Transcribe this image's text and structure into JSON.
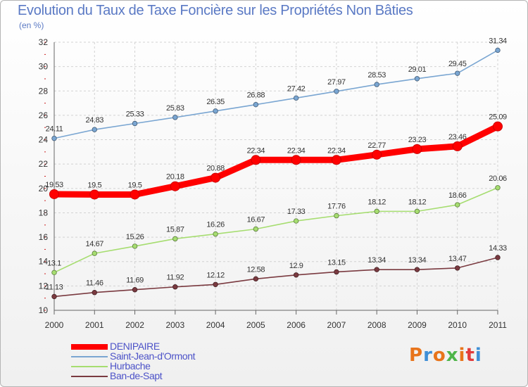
{
  "header": {
    "title": "Evolution du Taux de Taxe Foncière sur les Propriétés Non Bâties",
    "unit": "(en %)"
  },
  "brand": {
    "text": "Proxiti",
    "colors": [
      "#e8741b",
      "#3f8fd6",
      "#e8741b",
      "#4fb54a",
      "#e8741b",
      "#e23b3b",
      "#3f8fd6"
    ]
  },
  "chart_data": {
    "type": "line",
    "title": "Evolution du Taux de Taxe Foncière sur les Propriétés Non Bâties",
    "ylabel": "(en %)",
    "xlabel": "",
    "x": [
      "2000",
      "2001",
      "2002",
      "2003",
      "2004",
      "2005",
      "2006",
      "2007",
      "2008",
      "2009",
      "2010",
      "2011"
    ],
    "ylim": [
      10,
      32
    ],
    "yticks": [
      "10",
      "12",
      "14",
      "16",
      "18",
      "20",
      "22",
      "24",
      "26",
      "28",
      "30",
      "32"
    ],
    "grid": true,
    "legend_position": "bottom-left",
    "series": [
      {
        "name": "DENIPAIRE",
        "color": "#ff0000",
        "values": [
          19.53,
          19.5,
          19.5,
          20.18,
          20.88,
          22.34,
          22.34,
          22.34,
          22.77,
          23.23,
          23.46,
          25.09
        ],
        "labels": [
          "19.53",
          "19.5",
          "19.5",
          "20.18",
          "20.88",
          "22.34",
          "22.34",
          "22.34",
          "22.77",
          "23.23",
          "23.46",
          "25.09"
        ]
      },
      {
        "name": "Saint-Jean-d'Ormont",
        "color": "#7aa6d2",
        "values": [
          24.11,
          24.83,
          25.33,
          25.83,
          26.35,
          26.88,
          27.42,
          27.97,
          28.53,
          29.01,
          29.45,
          31.34
        ],
        "labels": [
          "24.11",
          "24.83",
          "25.33",
          "25.83",
          "26.35",
          "26.88",
          "27.42",
          "27.97",
          "28.53",
          "29.01",
          "29.45",
          "31.34"
        ]
      },
      {
        "name": "Hurbache",
        "color": "#a6dd70",
        "values": [
          13.1,
          14.67,
          15.26,
          15.87,
          16.26,
          16.67,
          17.33,
          17.76,
          18.12,
          18.12,
          18.66,
          20.06
        ],
        "labels": [
          "13.1",
          "14.67",
          "15.26",
          "15.87",
          "16.26",
          "16.67",
          "17.33",
          "17.76",
          "18.12",
          "18.12",
          "18.66",
          "20.06"
        ]
      },
      {
        "name": "Ban-de-Sapt",
        "color": "#7a3a40",
        "values": [
          11.13,
          11.46,
          11.69,
          11.92,
          12.12,
          12.58,
          12.9,
          13.15,
          13.34,
          13.34,
          13.47,
          14.33
        ],
        "labels": [
          "11.13",
          "11.46",
          "11.69",
          "11.92",
          "12.12",
          "12.58",
          "12.9",
          "13.15",
          "13.34",
          "13.34",
          "13.47",
          "14.33"
        ]
      }
    ]
  }
}
